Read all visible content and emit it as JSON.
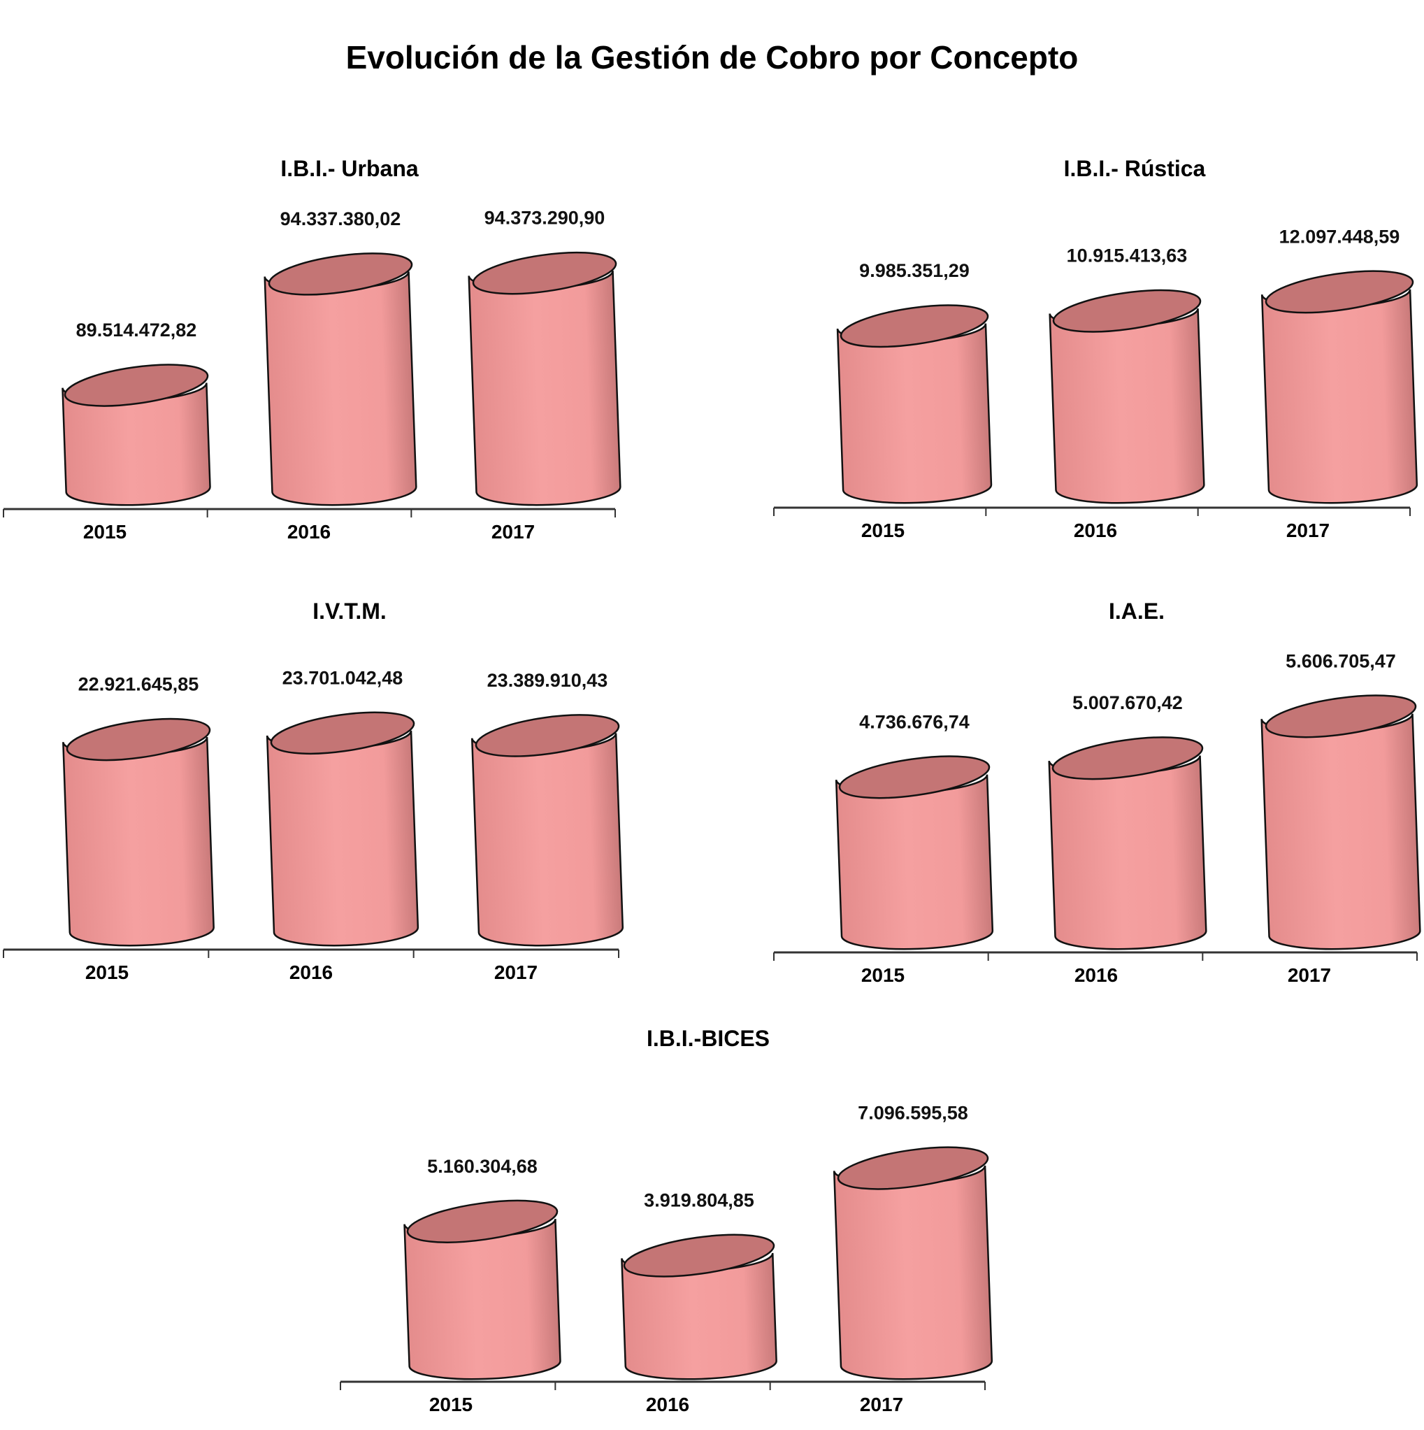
{
  "page": {
    "title": "Evolución de la Gestión de Cobro por Concepto"
  },
  "colors": {
    "bar_body": "#f5a0a0",
    "bar_top": "#c47575",
    "outline": "#111111"
  },
  "chart_data": [
    {
      "type": "bar",
      "title": "I.B.I.- Urbana",
      "categories": [
        "2015",
        "2016",
        "2017"
      ],
      "values": [
        89514472.82,
        94337380.02,
        94373290.9
      ],
      "labels": [
        "89.514.472,82",
        "94.337.380,02",
        "94.373.290,90"
      ],
      "ylim": [
        85000000,
        95000000
      ]
    },
    {
      "type": "bar",
      "title": "I.B.I.- Rústica",
      "categories": [
        "2015",
        "2016",
        "2017"
      ],
      "values": [
        9985351.29,
        10915413.63,
        12097448.59
      ],
      "labels": [
        "9.985.351,29",
        "10.915.413,63",
        "12.097.448,59"
      ],
      "ylim": [
        0,
        13500000
      ]
    },
    {
      "type": "bar",
      "title": "I.V.T.M.",
      "categories": [
        "2015",
        "2016",
        "2017"
      ],
      "values": [
        22921645.85,
        23701042.48,
        23389910.43
      ],
      "labels": [
        "22.921.645,85",
        "23.701.042,48",
        "23.389.910,43"
      ],
      "ylim": [
        0,
        26500000
      ]
    },
    {
      "type": "bar",
      "title": "I.A.E.",
      "categories": [
        "2015",
        "2016",
        "2017"
      ],
      "values": [
        4736676.74,
        5007670.42,
        5606705.47
      ],
      "labels": [
        "4.736.676,74",
        "5.007.670,42",
        "5.606.705,47"
      ],
      "ylim": [
        2500000,
        6000000
      ]
    },
    {
      "type": "bar",
      "title": "I.B.I.-BICES",
      "categories": [
        "2015",
        "2016",
        "2017"
      ],
      "values": [
        5160304.68,
        3919804.85,
        7096595.58
      ],
      "labels": [
        "5.160.304,68",
        "3.919.804,85",
        "7.096.595,58"
      ],
      "ylim": [
        0,
        8000000
      ]
    }
  ]
}
